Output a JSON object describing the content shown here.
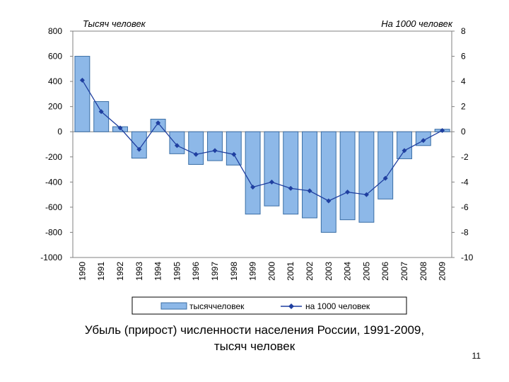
{
  "chart_data": {
    "type": "bar",
    "left_axis_unit": "Тысяч человек",
    "right_axis_unit": "На 1000 человек",
    "categories": [
      "1990",
      "1991",
      "1992",
      "1993",
      "1994",
      "1995",
      "1996",
      "1997",
      "1998",
      "1999",
      "2000",
      "2001",
      "2002",
      "2003",
      "2004",
      "2005",
      "2006",
      "2007",
      "2008",
      "2009"
    ],
    "y_left": {
      "range": [
        -1000,
        800
      ],
      "ticks": [
        "800",
        "600",
        "400",
        "200",
        "0",
        "-200",
        "-400",
        "-600",
        "-800",
        "-1000"
      ]
    },
    "y_right": {
      "range": [
        -10,
        8
      ],
      "ticks": [
        "8",
        "6",
        "4",
        "2",
        "0",
        "-2",
        "-4",
        "-6",
        "-8",
        "-10"
      ]
    },
    "series": [
      {
        "name": "тысяччеловек",
        "type": "bar",
        "axis": "left",
        "values": [
          600,
          240,
          40,
          -210,
          100,
          -175,
          -260,
          -230,
          -265,
          -655,
          -590,
          -655,
          -685,
          -800,
          -700,
          -720,
          -535,
          -215,
          -110,
          20
        ]
      },
      {
        "name": "на 1000 человек",
        "type": "line",
        "axis": "right",
        "values": [
          4.1,
          1.6,
          0.3,
          -1.4,
          0.7,
          -1.1,
          -1.8,
          -1.5,
          -1.8,
          -4.4,
          -4.0,
          -4.5,
          -4.7,
          -5.5,
          -4.8,
          -5.0,
          -3.7,
          -1.5,
          -0.7,
          0.1
        ]
      }
    ],
    "legend_position": "bottom",
    "grid": false,
    "colors": {
      "bar_fill": "#8DB8E8",
      "bar_stroke": "#3A6EA5",
      "line": "#1F3FA0"
    }
  },
  "caption": {
    "line1": "Убыль (прирост) численности населения России, 1991-2009,",
    "line2": "тысяч человек"
  },
  "slide_number": "11"
}
